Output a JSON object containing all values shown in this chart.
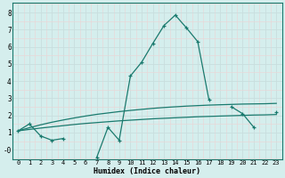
{
  "xlabel": "Humidex (Indice chaleur)",
  "x_values": [
    0,
    1,
    2,
    3,
    4,
    5,
    6,
    7,
    8,
    9,
    10,
    11,
    12,
    13,
    14,
    15,
    16,
    17,
    18,
    19,
    20,
    21,
    22,
    23
  ],
  "line1_y": [
    1.1,
    1.5,
    0.8,
    0.55,
    0.65,
    null,
    null,
    -0.45,
    1.3,
    0.55,
    4.3,
    5.1,
    6.2,
    7.25,
    7.85,
    7.1,
    6.3,
    2.9,
    null,
    2.5,
    2.1,
    1.3,
    null,
    2.2
  ],
  "line2_y": [
    1.1,
    1.28,
    1.45,
    1.6,
    1.73,
    1.85,
    1.96,
    2.06,
    2.14,
    2.22,
    2.29,
    2.35,
    2.41,
    2.46,
    2.5,
    2.54,
    2.57,
    2.6,
    2.62,
    2.64,
    2.66,
    2.67,
    2.68,
    2.7
  ],
  "line3_y": [
    1.1,
    1.18,
    1.26,
    1.33,
    1.4,
    1.47,
    1.53,
    1.58,
    1.63,
    1.68,
    1.72,
    1.76,
    1.8,
    1.83,
    1.86,
    1.89,
    1.92,
    1.94,
    1.96,
    1.98,
    2.0,
    2.02,
    2.03,
    2.05
  ],
  "line_color": "#1a7a6e",
  "bg_color": "#d5eeed",
  "grid_major_color": "#c8dede",
  "grid_minor_color": "#e8d8d8",
  "ylim": [
    -0.55,
    8.55
  ],
  "xlim": [
    -0.5,
    23.5
  ],
  "yticks": [
    0,
    1,
    2,
    3,
    4,
    5,
    6,
    7,
    8
  ],
  "ytick_labels": [
    "-0",
    "1",
    "2",
    "3",
    "4",
    "5",
    "6",
    "7",
    "8"
  ],
  "xticks": [
    0,
    1,
    2,
    3,
    4,
    5,
    6,
    7,
    8,
    9,
    10,
    11,
    12,
    13,
    14,
    15,
    16,
    17,
    18,
    19,
    20,
    21,
    22,
    23
  ]
}
